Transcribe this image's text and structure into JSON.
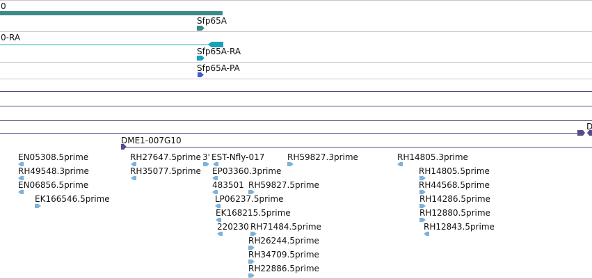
{
  "colors": {
    "separator": "#c8c8c8",
    "gene": "#3b8a87",
    "transcript": "#1aa0b8",
    "protein": "#3f5fcf",
    "genomic": "#5a4a8c",
    "est": "#7fb2d8"
  },
  "tracks": {
    "gene": {
      "left_label": "0",
      "name": "Sfp65A"
    },
    "transcript": {
      "left_label": "0-RA",
      "name": "Sfp65A-RA"
    },
    "protein": {
      "name": "Sfp65A-PA"
    },
    "genomic": {
      "right_label": "D"
    },
    "clone": {
      "name": "DME1-007G10"
    }
  },
  "ests": [
    "EN05308.5prime",
    "RH49548.3prime",
    "EN06856.5prime",
    "EK166546.5prime",
    "RH27647.5prime",
    "RH35077.5prime",
    "3'",
    "EST-Nfly-017",
    "EP03360.3prime",
    "483501",
    "LP06237.5prime",
    "EK168215.5prime",
    "220230",
    "RH59827.3prime",
    "RH59827.5prime",
    "RH71484.5prime",
    "RH26244.5prime",
    "RH34709.5prime",
    "RH22886.5prime",
    "RH14805.3prime",
    "RH14805.5prime",
    "RH44568.5prime",
    "RH14286.5prime",
    "RH12880.5prime",
    "RH12843.5prime"
  ]
}
